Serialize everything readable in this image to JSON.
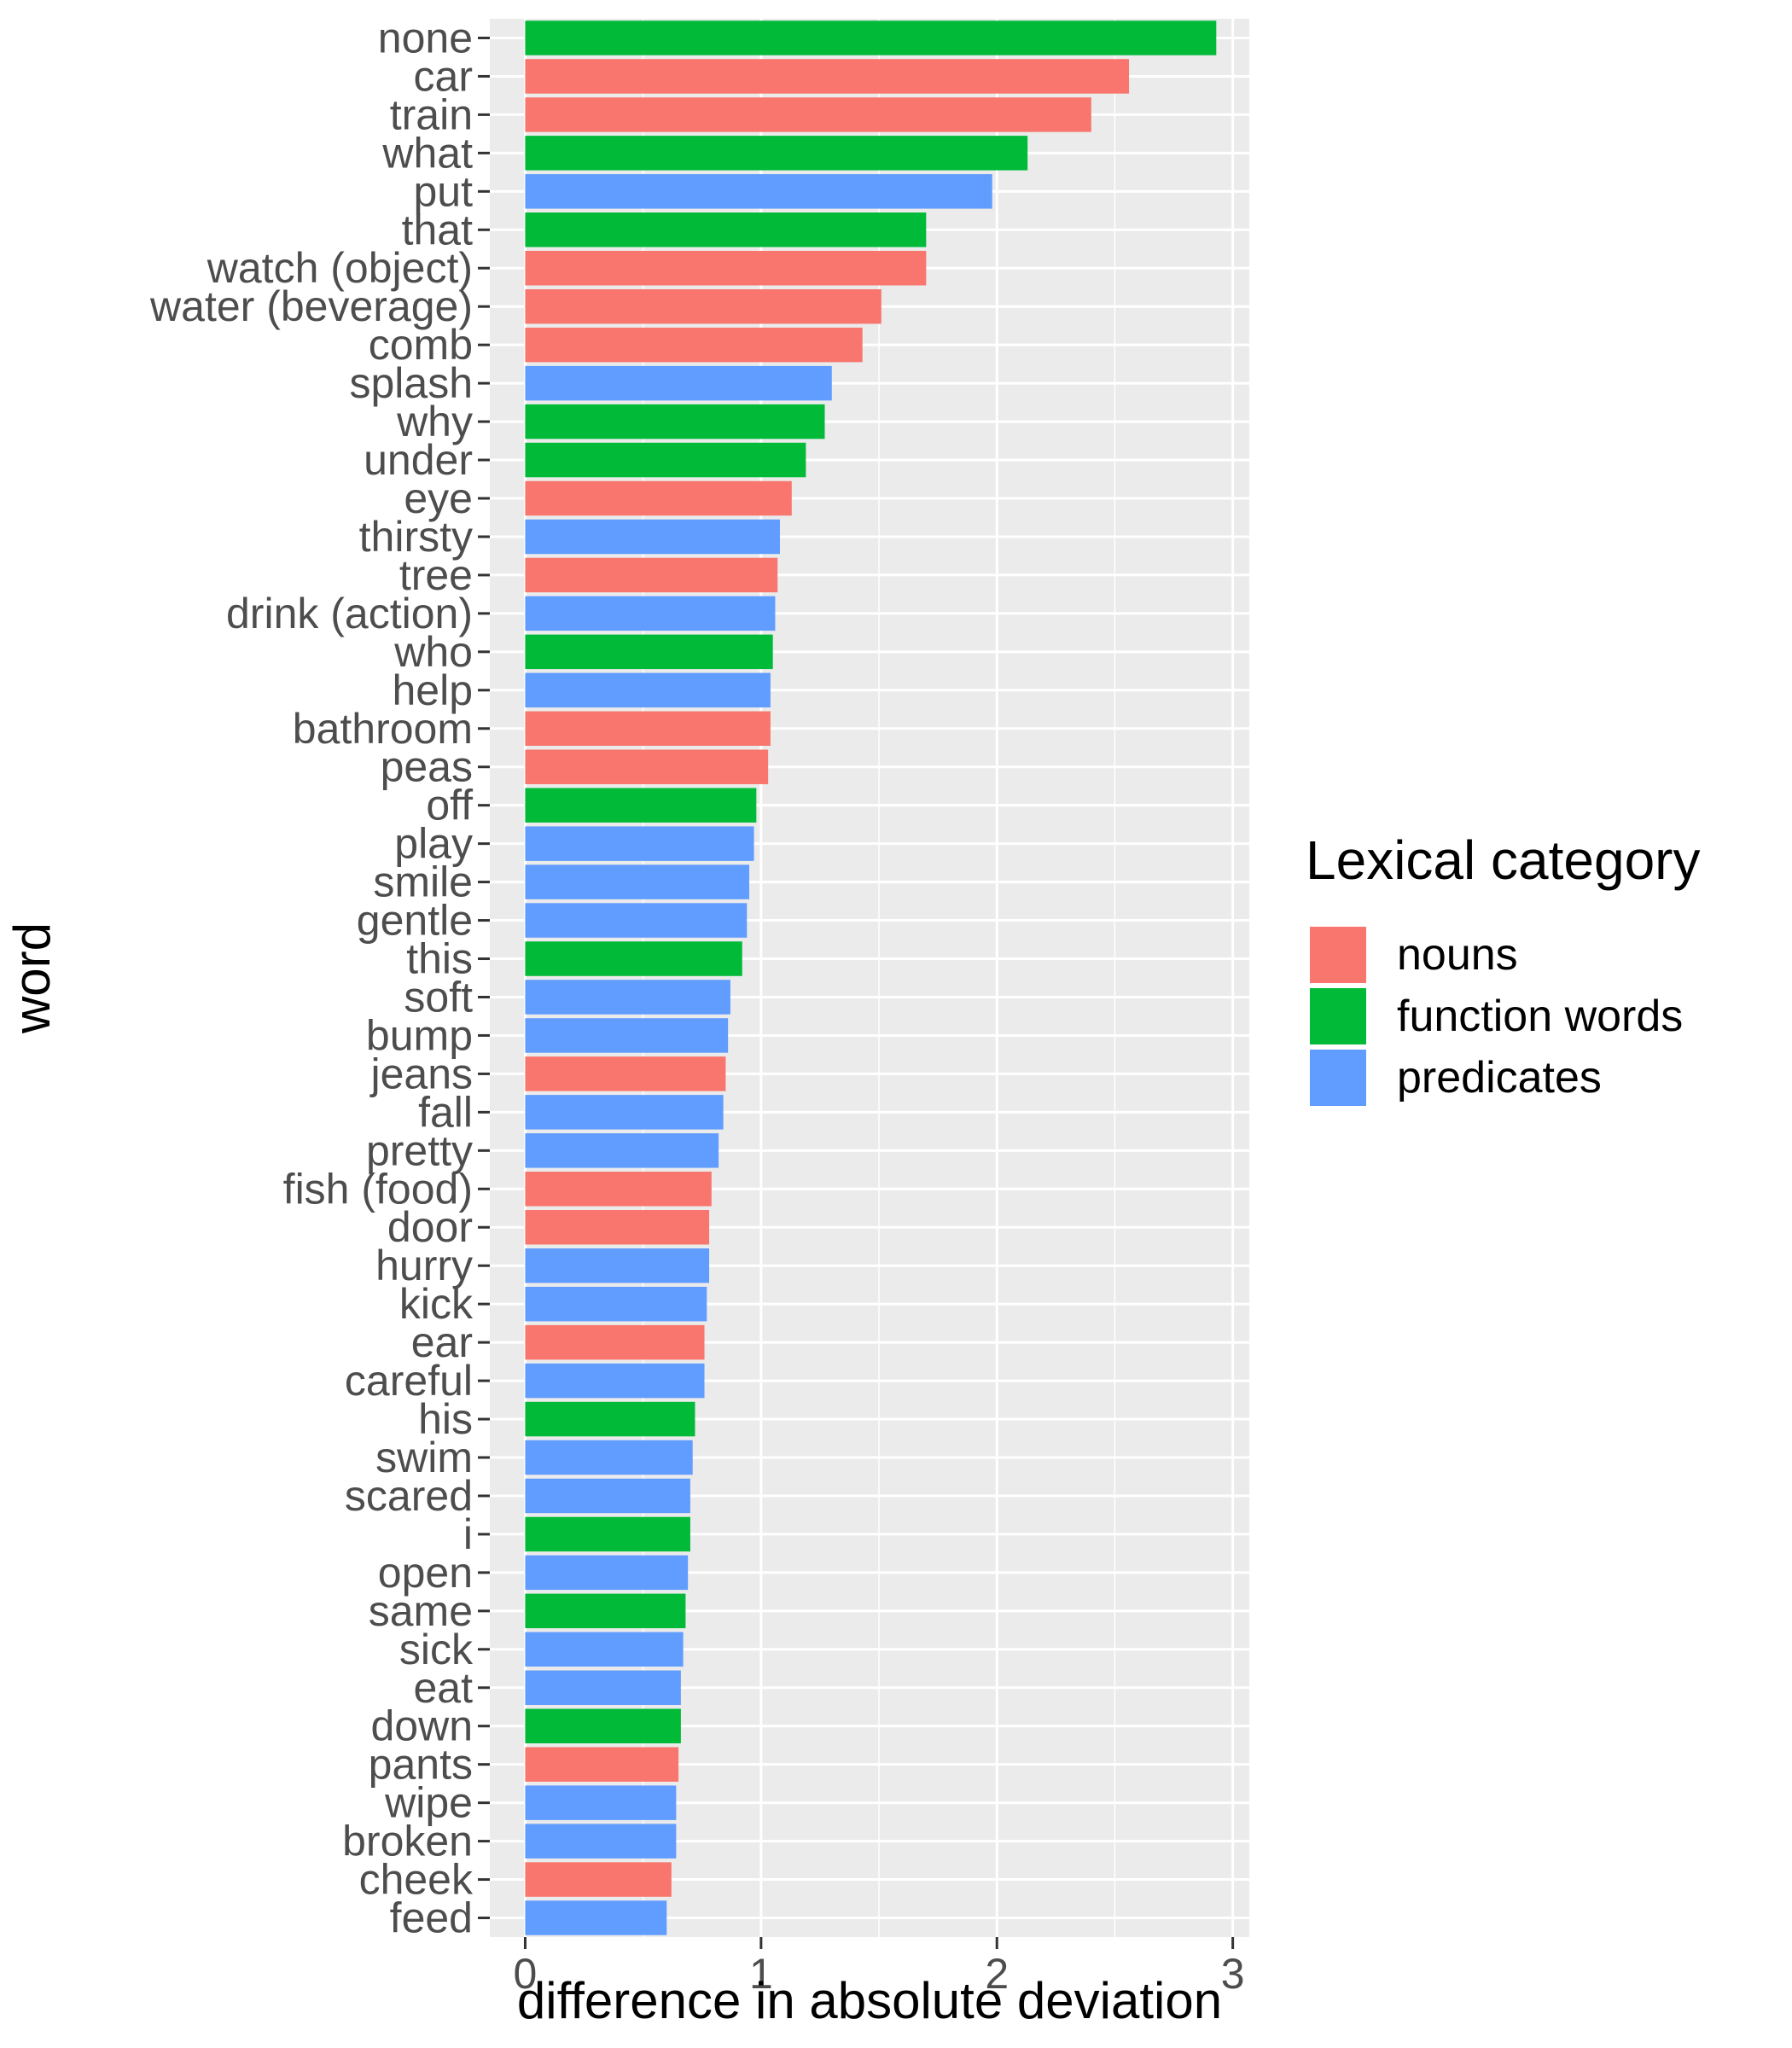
{
  "chart_data": {
    "type": "bar",
    "orientation": "horizontal",
    "xlabel": "difference in absolute deviation",
    "ylabel": "word",
    "xlim": [
      -0.15,
      3.07
    ],
    "xticks": [
      0,
      1,
      2,
      3
    ],
    "grid": true,
    "legend": {
      "title": "Lexical category",
      "placement": "right",
      "entries": [
        {
          "key": "nouns",
          "label": "nouns",
          "color": "#F8766D"
        },
        {
          "key": "function",
          "label": "function words",
          "color": "#00BA38"
        },
        {
          "key": "predicates",
          "label": "predicates",
          "color": "#619CFF"
        }
      ]
    },
    "bars": [
      {
        "word": "none",
        "value": 2.93,
        "category": "function"
      },
      {
        "word": "car",
        "value": 2.56,
        "category": "nouns"
      },
      {
        "word": "train",
        "value": 2.4,
        "category": "nouns"
      },
      {
        "word": "what",
        "value": 2.13,
        "category": "function"
      },
      {
        "word": "put",
        "value": 1.98,
        "category": "predicates"
      },
      {
        "word": "that",
        "value": 1.7,
        "category": "function"
      },
      {
        "word": "watch (object)",
        "value": 1.7,
        "category": "nouns"
      },
      {
        "word": "water (beverage)",
        "value": 1.51,
        "category": "nouns"
      },
      {
        "word": "comb",
        "value": 1.43,
        "category": "nouns"
      },
      {
        "word": "splash",
        "value": 1.3,
        "category": "predicates"
      },
      {
        "word": "why",
        "value": 1.27,
        "category": "function"
      },
      {
        "word": "under",
        "value": 1.19,
        "category": "function"
      },
      {
        "word": "eye",
        "value": 1.13,
        "category": "nouns"
      },
      {
        "word": "thirsty",
        "value": 1.08,
        "category": "predicates"
      },
      {
        "word": "tree",
        "value": 1.07,
        "category": "nouns"
      },
      {
        "word": "drink (action)",
        "value": 1.06,
        "category": "predicates"
      },
      {
        "word": "who",
        "value": 1.05,
        "category": "function"
      },
      {
        "word": "help",
        "value": 1.04,
        "category": "predicates"
      },
      {
        "word": "bathroom",
        "value": 1.04,
        "category": "nouns"
      },
      {
        "word": "peas",
        "value": 1.03,
        "category": "nouns"
      },
      {
        "word": "off",
        "value": 0.98,
        "category": "function"
      },
      {
        "word": "play",
        "value": 0.97,
        "category": "predicates"
      },
      {
        "word": "smile",
        "value": 0.95,
        "category": "predicates"
      },
      {
        "word": "gentle",
        "value": 0.94,
        "category": "predicates"
      },
      {
        "word": "this",
        "value": 0.92,
        "category": "function"
      },
      {
        "word": "soft",
        "value": 0.87,
        "category": "predicates"
      },
      {
        "word": "bump",
        "value": 0.86,
        "category": "predicates"
      },
      {
        "word": "jeans",
        "value": 0.85,
        "category": "nouns"
      },
      {
        "word": "fall",
        "value": 0.84,
        "category": "predicates"
      },
      {
        "word": "pretty",
        "value": 0.82,
        "category": "predicates"
      },
      {
        "word": "fish (food)",
        "value": 0.79,
        "category": "nouns"
      },
      {
        "word": "door",
        "value": 0.78,
        "category": "nouns"
      },
      {
        "word": "hurry",
        "value": 0.78,
        "category": "predicates"
      },
      {
        "word": "kick",
        "value": 0.77,
        "category": "predicates"
      },
      {
        "word": "ear",
        "value": 0.76,
        "category": "nouns"
      },
      {
        "word": "careful",
        "value": 0.76,
        "category": "predicates"
      },
      {
        "word": "his",
        "value": 0.72,
        "category": "function"
      },
      {
        "word": "swim",
        "value": 0.71,
        "category": "predicates"
      },
      {
        "word": "scared",
        "value": 0.7,
        "category": "predicates"
      },
      {
        "word": "i",
        "value": 0.7,
        "category": "function"
      },
      {
        "word": "open",
        "value": 0.69,
        "category": "predicates"
      },
      {
        "word": "same",
        "value": 0.68,
        "category": "function"
      },
      {
        "word": "sick",
        "value": 0.67,
        "category": "predicates"
      },
      {
        "word": "eat",
        "value": 0.66,
        "category": "predicates"
      },
      {
        "word": "down",
        "value": 0.66,
        "category": "function"
      },
      {
        "word": "pants",
        "value": 0.65,
        "category": "nouns"
      },
      {
        "word": "wipe",
        "value": 0.64,
        "category": "predicates"
      },
      {
        "word": "broken",
        "value": 0.64,
        "category": "predicates"
      },
      {
        "word": "cheek",
        "value": 0.62,
        "category": "nouns"
      },
      {
        "word": "feed",
        "value": 0.6,
        "category": "predicates"
      }
    ]
  }
}
